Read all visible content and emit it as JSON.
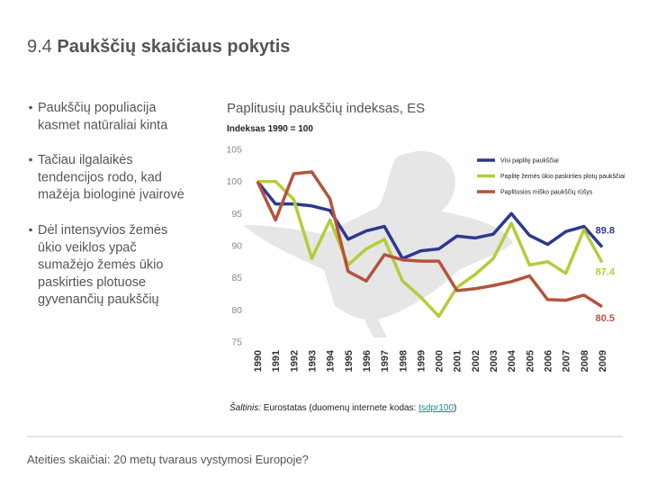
{
  "slide_title_number": "9.4",
  "slide_title": "Paukščių skaičiaus pokytis",
  "bullets": [
    [
      "Paukščių populiacija",
      "kasmet natūraliai kinta"
    ],
    [
      "Tačiau ilgalaikės",
      "tendencijos rodo, kad",
      "mažėja biologinė įvairovė"
    ],
    [
      "Dėl intensyvios žemės",
      "ūkio veiklos ypač",
      "sumažėjo žemės ūkio",
      "paskirties plotuose",
      "gyvenančių paukščių"
    ]
  ],
  "source": {
    "label": "Šaltinis:",
    "text": " Eurostatas (duomenų internete kodas: ",
    "link": "tsdpr100",
    "close": ")"
  },
  "footer": "Ateities skaičiai: 20 metų tvaraus vystymosi Europoje?",
  "chart_data": {
    "type": "line",
    "title": "Paplitusių paukščių indeksas, ES",
    "subtitle": "Indeksas 1990 = 100",
    "categories": [
      "1990",
      "1991",
      "1992",
      "1993",
      "1994",
      "1995",
      "1996",
      "1997",
      "1998",
      "1999",
      "2000",
      "2001",
      "2002",
      "2003",
      "2004",
      "2005",
      "2006",
      "2007",
      "2008",
      "2009"
    ],
    "series": [
      {
        "name": "Visi paplitę paukščiai",
        "color": "#2b3990",
        "values": [
          100,
          96.5,
          96.5,
          96.2,
          95.5,
          91,
          92.3,
          93,
          88,
          89.2,
          89.5,
          91.5,
          91.2,
          91.8,
          95,
          91.6,
          90.2,
          92.2,
          93,
          89.8
        ]
      },
      {
        "name": "Paplitę žemės ūkio paskirties plotų paukščiai",
        "color": "#b5cc3a",
        "values": [
          100,
          100,
          97.2,
          88,
          94,
          87,
          89.5,
          91,
          84.5,
          82,
          79,
          83.5,
          85.5,
          88,
          93.5,
          87,
          87.5,
          85.7,
          92.5,
          87.4
        ]
      },
      {
        "name": "Paplitusios miško paukščių rūšys",
        "color": "#b5533c",
        "values": [
          100,
          94,
          101.2,
          101.5,
          97.3,
          86,
          84.5,
          88.6,
          87.8,
          87.6,
          87.6,
          83,
          83.3,
          83.8,
          84.4,
          85.3,
          81.6,
          81.5,
          82.3,
          80.5
        ]
      }
    ],
    "ylim": [
      75,
      105
    ],
    "yticks": [
      75,
      80,
      85,
      90,
      95,
      100,
      105
    ],
    "grid": false,
    "legend": "top-right"
  }
}
